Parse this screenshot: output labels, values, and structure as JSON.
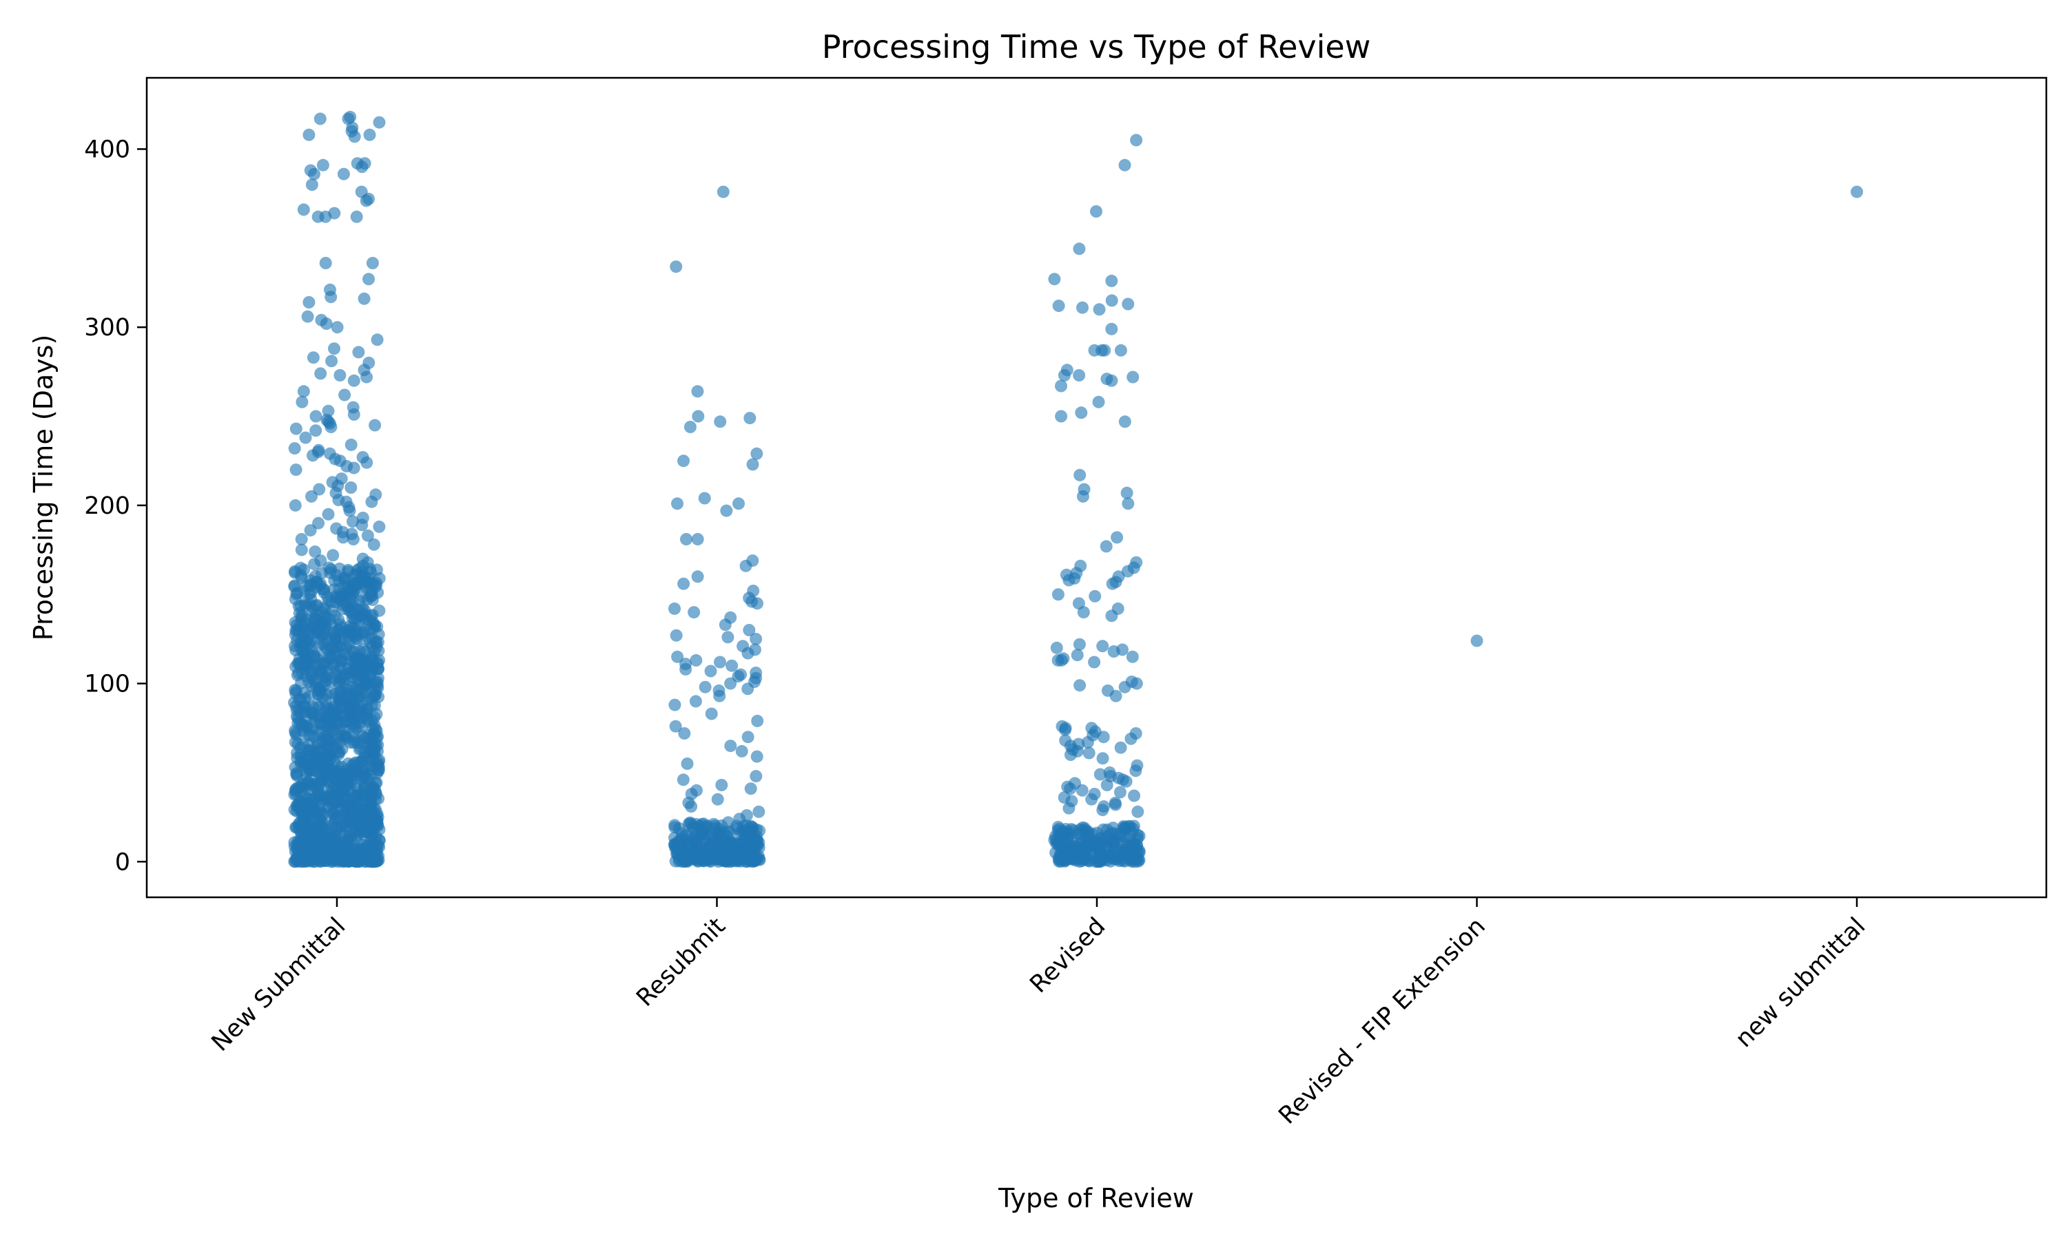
{
  "chart_data": {
    "type": "scatter",
    "subtype": "strip",
    "title": "Processing Time vs Type of Review",
    "xlabel": "Type of Review",
    "ylabel": "Processing Time (Days)",
    "categories": [
      "New Submittal",
      "Resubmit",
      "Revised",
      "Revised - FIP Extension",
      "new submittal"
    ],
    "ylim": [
      -20,
      440
    ],
    "yticks": [
      0,
      100,
      200,
      300,
      400
    ],
    "grid": false,
    "legend": "none",
    "marker_color": "#1f77b4",
    "marker_alpha": 0.6,
    "series": [
      {
        "category": "New Submittal",
        "values": [
          418,
          417,
          417,
          415,
          412,
          410,
          408,
          408,
          407,
          392,
          392,
          391,
          390,
          388,
          386,
          386,
          380,
          376,
          372,
          371,
          366,
          364,
          362,
          362,
          362,
          336,
          336,
          327,
          321,
          317,
          316,
          314,
          306,
          304,
          302,
          300,
          293,
          288,
          286,
          283,
          281,
          280,
          276,
          274,
          273,
          272,
          270,
          264,
          262,
          258,
          255,
          253,
          251,
          250,
          248,
          247,
          246,
          245,
          244,
          243,
          242,
          238,
          234,
          232,
          231,
          230,
          229,
          228,
          227,
          226,
          225,
          224,
          222,
          221,
          220,
          215,
          213,
          211,
          210,
          209,
          207,
          206,
          205,
          203,
          202,
          202,
          200,
          199,
          197,
          195,
          193,
          191,
          190,
          189,
          188,
          187,
          186,
          185,
          184,
          183,
          182,
          181,
          181,
          178,
          175,
          174,
          172,
          170,
          169,
          168,
          167,
          166,
          165,
          164,
          163,
          162,
          161,
          160,
          160,
          159,
          158,
          157,
          156,
          155,
          154,
          153,
          152,
          151,
          150,
          149,
          148,
          147,
          146,
          145,
          144,
          143,
          142,
          141,
          140,
          139,
          138,
          137,
          136,
          135,
          134,
          133,
          132,
          131,
          130,
          129,
          128,
          127,
          126,
          125,
          124,
          123,
          122,
          121,
          120,
          119,
          118,
          117,
          116,
          115,
          114,
          113,
          112,
          111,
          110,
          109,
          108,
          107,
          106,
          105,
          104,
          103,
          102,
          101,
          100,
          99,
          98,
          97,
          96,
          95,
          94,
          93,
          92,
          91,
          90,
          89,
          88,
          87,
          86,
          85,
          84,
          83,
          82,
          81,
          80,
          79,
          78,
          77,
          76,
          75,
          74,
          73,
          72,
          71,
          70,
          69,
          68,
          67,
          66,
          65,
          64,
          63,
          62,
          61,
          60,
          59,
          58,
          57,
          56,
          55,
          54,
          53,
          52,
          51,
          50,
          49,
          48,
          47,
          46,
          45,
          44,
          43,
          42,
          41,
          40,
          39,
          38,
          37,
          36,
          35,
          34,
          33,
          32,
          31,
          30,
          29,
          28,
          27,
          26,
          25,
          24,
          23,
          22,
          21,
          20,
          19,
          18,
          17,
          16,
          15,
          14,
          13,
          12,
          11,
          10,
          9,
          8,
          7,
          6,
          5,
          4,
          3,
          2,
          1,
          0
        ],
        "dense_count": 1200,
        "dense_range": [
          0,
          165
        ]
      },
      {
        "category": "Resubmit",
        "values": [
          376,
          334,
          264,
          250,
          249,
          247,
          244,
          229,
          225,
          223,
          204,
          201,
          201,
          197,
          181,
          181,
          169,
          166,
          160,
          156,
          152,
          148,
          146,
          145,
          142,
          140,
          137,
          133,
          130,
          127,
          126,
          125,
          121,
          119,
          117,
          115,
          113,
          112,
          111,
          110,
          108,
          107,
          106,
          105,
          104,
          103,
          101,
          100,
          98,
          97,
          96,
          93,
          90,
          88,
          83,
          79,
          76,
          72,
          70,
          65,
          62,
          59,
          55,
          48,
          46,
          43,
          41,
          40,
          38,
          35,
          33,
          31,
          28,
          26,
          24,
          22,
          20,
          19,
          18,
          17,
          16,
          15,
          14,
          13,
          12,
          11,
          10,
          9,
          8,
          7,
          6,
          5,
          4,
          3,
          2,
          1,
          0
        ],
        "dense_count": 260,
        "dense_range": [
          0,
          22
        ]
      },
      {
        "category": "Revised",
        "values": [
          405,
          391,
          365,
          344,
          327,
          326,
          315,
          313,
          312,
          311,
          310,
          299,
          287,
          287,
          287,
          287,
          276,
          273,
          273,
          272,
          271,
          270,
          267,
          258,
          252,
          250,
          247,
          217,
          209,
          207,
          205,
          201,
          182,
          177,
          168,
          166,
          165,
          163,
          162,
          161,
          160,
          159,
          158,
          157,
          156,
          150,
          149,
          145,
          142,
          140,
          138,
          122,
          121,
          120,
          119,
          118,
          116,
          115,
          114,
          113,
          113,
          112,
          101,
          100,
          99,
          98,
          96,
          93,
          76,
          75,
          75,
          74,
          73,
          72,
          71,
          70,
          69,
          68,
          67,
          66,
          65,
          64,
          63,
          62,
          61,
          60,
          58,
          54,
          51,
          50,
          49,
          48,
          47,
          46,
          45,
          44,
          43,
          42,
          41,
          40,
          39,
          38,
          37,
          36,
          35,
          34,
          33,
          32,
          31,
          30,
          29,
          28,
          20,
          19,
          18,
          17,
          16,
          15,
          14,
          13,
          12,
          11,
          10,
          9,
          8,
          7,
          6,
          5,
          4,
          3,
          2,
          1,
          0
        ],
        "dense_count": 200,
        "dense_range": [
          0,
          20
        ]
      },
      {
        "category": "Revised - FIP Extension",
        "values": [
          124
        ],
        "dense_count": 0,
        "dense_range": [
          0,
          0
        ]
      },
      {
        "category": "new submittal",
        "values": [
          376
        ],
        "dense_count": 0,
        "dense_range": [
          0,
          0
        ]
      }
    ]
  }
}
